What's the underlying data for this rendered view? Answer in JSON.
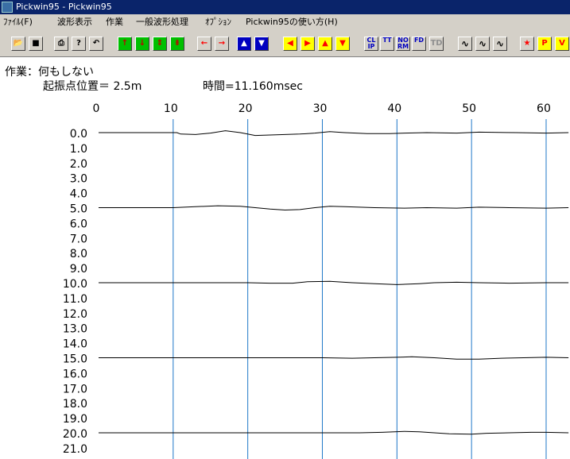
{
  "window": {
    "title": "Pickwin95 - Pickwin95"
  },
  "menu": [
    "ﾌｧｲﾙ(F)",
    "波形表示",
    "作業",
    "一般波形処理",
    "ｵﾌﾟｼｮﾝ",
    "Pickwin95の使い方(H)"
  ],
  "toolbar": [
    {
      "name": "open-icon",
      "glyph": "📂",
      "style": ""
    },
    {
      "name": "save-icon",
      "glyph": "■",
      "style": ""
    },
    {
      "name": "print-icon",
      "glyph": "⎙",
      "style": ""
    },
    {
      "name": "help-icon",
      "glyph": "?",
      "style": ""
    },
    {
      "name": "undo-icon",
      "glyph": "↶",
      "style": ""
    },
    {
      "name": "arrow-up-icon",
      "glyph": "↑",
      "style": "green"
    },
    {
      "name": "arrow-down-icon",
      "glyph": "↓",
      "style": "green"
    },
    {
      "name": "expand-icon",
      "glyph": "⇕",
      "style": "green"
    },
    {
      "name": "shrink-icon",
      "glyph": "⇟",
      "style": "green"
    },
    {
      "name": "arrow-left-icon",
      "glyph": "←",
      "style": "red"
    },
    {
      "name": "arrow-right-icon",
      "glyph": "→",
      "style": "red"
    },
    {
      "name": "trace-up-icon",
      "glyph": "▲",
      "style": "blue"
    },
    {
      "name": "trace-down-icon",
      "glyph": "▼",
      "style": "blue"
    },
    {
      "name": "triangle-left-icon",
      "glyph": "◀",
      "style": "yel"
    },
    {
      "name": "triangle-right-icon",
      "glyph": "▶",
      "style": "yel"
    },
    {
      "name": "triangle-up-icon",
      "glyph": "▲",
      "style": "yel"
    },
    {
      "name": "triangle-down-icon",
      "glyph": "▼",
      "style": "yel"
    },
    {
      "name": "clip-icon",
      "glyph": "CL IP",
      "style": "txt"
    },
    {
      "name": "tt-icon",
      "glyph": "TT",
      "style": "txt"
    },
    {
      "name": "norm-icon",
      "glyph": "NO RM",
      "style": "txt"
    },
    {
      "name": "fd-icon",
      "glyph": "FD",
      "style": "txt"
    },
    {
      "name": "td-icon",
      "glyph": "TD",
      "style": "gray"
    },
    {
      "name": "wave-icon",
      "glyph": "∿",
      "style": "wav"
    },
    {
      "name": "wave-fill-icon",
      "glyph": "∿",
      "style": "wav"
    },
    {
      "name": "wave-neg-icon",
      "glyph": "∿",
      "style": "wav"
    },
    {
      "name": "star-icon",
      "glyph": "★",
      "style": "red"
    },
    {
      "name": "p-pick-icon",
      "glyph": "P",
      "style": "yel"
    },
    {
      "name": "v-pick-icon",
      "glyph": "V",
      "style": "yel"
    }
  ],
  "status": {
    "task": "作業：何もしない",
    "source": "起振点位置＝ 2.5m",
    "time": "時間=11.160msec"
  },
  "colors": {
    "grid": "#1f78c8",
    "trace": "#000000"
  },
  "chart_data": {
    "type": "line",
    "x_ticks": [
      "0",
      "10",
      "20",
      "30",
      "40",
      "50",
      "60"
    ],
    "y_ticks": [
      "0.0",
      "1.0",
      "2.0",
      "3.0",
      "4.0",
      "5.0",
      "6.0",
      "7.0",
      "8.0",
      "9.0",
      "10.0",
      "11.0",
      "12.0",
      "13.0",
      "14.0",
      "15.0",
      "16.0",
      "17.0",
      "18.0",
      "19.0",
      "20.0",
      "21.0"
    ],
    "traces": [
      {
        "offset": 0,
        "points": [
          [
            0,
            0
          ],
          [
            10.5,
            0
          ],
          [
            11,
            0.15
          ],
          [
            13,
            0.2
          ],
          [
            15,
            0.05
          ],
          [
            17,
            -0.2
          ],
          [
            19,
            0
          ],
          [
            21,
            0.3
          ],
          [
            23,
            0.25
          ],
          [
            27,
            0.15
          ],
          [
            29,
            0.05
          ],
          [
            31,
            -0.1
          ],
          [
            33,
            0
          ],
          [
            36,
            0.1
          ],
          [
            39,
            0.1
          ],
          [
            41,
            0.05
          ],
          [
            44,
            0
          ],
          [
            48,
            0.05
          ],
          [
            51,
            -0.05
          ],
          [
            56,
            0
          ],
          [
            60,
            0.05
          ],
          [
            63,
            0
          ]
        ]
      },
      {
        "offset": 5,
        "points": [
          [
            0,
            0
          ],
          [
            10,
            0
          ],
          [
            13,
            -0.1
          ],
          [
            16,
            -0.2
          ],
          [
            19,
            -0.15
          ],
          [
            21,
            0
          ],
          [
            23,
            0.15
          ],
          [
            25,
            0.25
          ],
          [
            27,
            0.2
          ],
          [
            29,
            0
          ],
          [
            31,
            -0.15
          ],
          [
            33,
            -0.1
          ],
          [
            37,
            0
          ],
          [
            41,
            0.05
          ],
          [
            44,
            0
          ],
          [
            48,
            0.05
          ],
          [
            51,
            -0.05
          ],
          [
            55,
            0
          ],
          [
            60,
            0.05
          ],
          [
            63,
            0
          ]
        ]
      },
      {
        "offset": 10,
        "points": [
          [
            0,
            0
          ],
          [
            20,
            0
          ],
          [
            23,
            0.05
          ],
          [
            26,
            0.05
          ],
          [
            28,
            -0.1
          ],
          [
            31,
            -0.15
          ],
          [
            34,
            0
          ],
          [
            37,
            0.1
          ],
          [
            40,
            0.2
          ],
          [
            43,
            0.1
          ],
          [
            45,
            0
          ],
          [
            48,
            -0.05
          ],
          [
            51,
            0
          ],
          [
            55,
            0.05
          ],
          [
            60,
            0
          ],
          [
            63,
            0
          ]
        ]
      },
      {
        "offset": 15,
        "points": [
          [
            0,
            0
          ],
          [
            30,
            0
          ],
          [
            34,
            0.05
          ],
          [
            37,
            0
          ],
          [
            40,
            -0.05
          ],
          [
            42,
            -0.1
          ],
          [
            45,
            0
          ],
          [
            48,
            0.15
          ],
          [
            51,
            0.15
          ],
          [
            54,
            0.05
          ],
          [
            57,
            0
          ],
          [
            60,
            -0.05
          ],
          [
            63,
            0
          ]
        ]
      },
      {
        "offset": 20,
        "points": [
          [
            0,
            0
          ],
          [
            35,
            0
          ],
          [
            38,
            -0.05
          ],
          [
            41,
            -0.15
          ],
          [
            43,
            -0.1
          ],
          [
            45,
            0
          ],
          [
            47,
            0.1
          ],
          [
            50,
            0.15
          ],
          [
            52,
            0.05
          ],
          [
            55,
            0
          ],
          [
            58,
            -0.05
          ],
          [
            60,
            -0.05
          ],
          [
            63,
            0
          ]
        ]
      }
    ],
    "xlim": [
      0,
      63.2
    ],
    "ylim": [
      -0.3,
      21.8
    ],
    "grid_x": [
      10,
      20,
      30,
      40,
      50,
      60
    ]
  }
}
